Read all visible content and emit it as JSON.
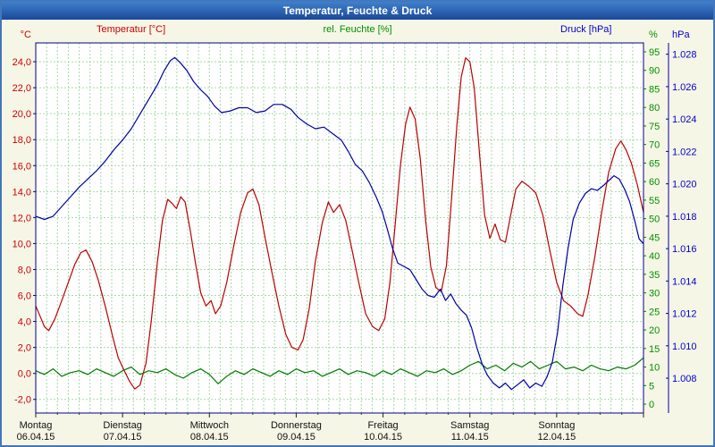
{
  "window": {
    "title": "Temperatur, Feuchte & Druck"
  },
  "legend": {
    "temperature": "Temperatur [°C]",
    "humidity": "rel. Feuchte [%]",
    "pressure": "Druck [hPa]"
  },
  "colors": {
    "temperature": "#bb0000",
    "humidity": "#007a00",
    "pressure": "#0000a8",
    "temp_text": "#cc0000",
    "hum_text": "#009000",
    "press_text": "#0000cc",
    "grid": "#a7d7a7",
    "plot_border": "#000080",
    "day_label": "#111111",
    "background": "#f6f6e6"
  },
  "axes": {
    "left": {
      "unit": "°C",
      "tick_values": [
        24,
        22,
        20,
        18,
        16,
        14,
        12,
        10,
        8,
        6,
        4,
        2,
        0,
        -2
      ],
      "tick_labels": [
        "24,0",
        "22,0",
        "20,0",
        "18,0",
        "16,0",
        "14,0",
        "12,0",
        "10,0",
        "8,0",
        "6,0",
        "4,0",
        "2,0",
        "0,0",
        "-2,0"
      ]
    },
    "right_humidity": {
      "unit": "%",
      "tick_values": [
        95,
        90,
        85,
        80,
        75,
        70,
        65,
        60,
        55,
        50,
        45,
        40,
        35,
        30,
        25,
        20,
        15,
        10,
        5,
        0
      ],
      "tick_labels": [
        "95",
        "90",
        "85",
        "80",
        "75",
        "70",
        "65",
        "60",
        "55",
        "50",
        "45",
        "40",
        "35",
        "30",
        "25",
        "20",
        "15",
        "10",
        "5",
        "0"
      ]
    },
    "right_pressure": {
      "unit": "hPa",
      "tick_values": [
        1.028,
        1.026,
        1.024,
        1.022,
        1.02,
        1.018,
        1.016,
        1.014,
        1.012,
        1.01,
        1.008
      ],
      "tick_labels": [
        "1.028",
        "1.026",
        "1.024",
        "1.022",
        "1.020",
        "1.018",
        "1.016",
        "1.014",
        "1.012",
        "1.010",
        "1.008"
      ]
    },
    "x_days": [
      {
        "weekday": "Montag",
        "date": "06.04.15"
      },
      {
        "weekday": "Dienstag",
        "date": "07.04.15"
      },
      {
        "weekday": "Mittwoch",
        "date": "08.04.15"
      },
      {
        "weekday": "Donnerstag",
        "date": "09.04.15"
      },
      {
        "weekday": "Freitag",
        "date": "10.04.15"
      },
      {
        "weekday": "Samstag",
        "date": "11.04.15"
      },
      {
        "weekday": "Sonntag",
        "date": "12.04.15"
      }
    ]
  },
  "chart_data": {
    "type": "line",
    "title": "Temperatur, Feuchte & Druck",
    "x_unit": "days",
    "x_range": [
      0,
      7
    ],
    "grid": {
      "x_step_days": 0.125,
      "y_step_temp": 2
    },
    "axis_ranges": {
      "temp": [
        -3.05,
        25.45
      ],
      "hum": [
        -2.4,
        97.4
      ],
      "press": [
        1.00585,
        1.0287
      ]
    },
    "series": [
      {
        "name": "Temperatur",
        "unit": "°C",
        "axis": "temp",
        "color_key": "temperature",
        "points": [
          [
            0.0,
            5.2
          ],
          [
            0.05,
            4.4
          ],
          [
            0.1,
            3.6
          ],
          [
            0.15,
            3.3
          ],
          [
            0.22,
            4.2
          ],
          [
            0.3,
            5.6
          ],
          [
            0.38,
            7.1
          ],
          [
            0.45,
            8.4
          ],
          [
            0.52,
            9.3
          ],
          [
            0.58,
            9.5
          ],
          [
            0.65,
            8.6
          ],
          [
            0.72,
            7.2
          ],
          [
            0.8,
            5.2
          ],
          [
            0.88,
            3.0
          ],
          [
            0.95,
            1.2
          ],
          [
            1.02,
            0.2
          ],
          [
            1.08,
            -0.6
          ],
          [
            1.14,
            -1.2
          ],
          [
            1.2,
            -0.9
          ],
          [
            1.27,
            0.8
          ],
          [
            1.33,
            4.0
          ],
          [
            1.4,
            8.5
          ],
          [
            1.46,
            11.8
          ],
          [
            1.52,
            13.4
          ],
          [
            1.57,
            13.1
          ],
          [
            1.62,
            12.7
          ],
          [
            1.67,
            13.6
          ],
          [
            1.72,
            13.2
          ],
          [
            1.78,
            11.0
          ],
          [
            1.84,
            8.5
          ],
          [
            1.9,
            6.2
          ],
          [
            1.96,
            5.2
          ],
          [
            2.02,
            5.6
          ],
          [
            2.07,
            4.6
          ],
          [
            2.13,
            5.2
          ],
          [
            2.2,
            7.0
          ],
          [
            2.28,
            9.8
          ],
          [
            2.36,
            12.4
          ],
          [
            2.44,
            13.9
          ],
          [
            2.5,
            14.2
          ],
          [
            2.57,
            13.0
          ],
          [
            2.64,
            10.5
          ],
          [
            2.72,
            7.8
          ],
          [
            2.8,
            5.2
          ],
          [
            2.88,
            3.0
          ],
          [
            2.95,
            2.0
          ],
          [
            3.02,
            1.8
          ],
          [
            3.08,
            2.6
          ],
          [
            3.15,
            5.0
          ],
          [
            3.22,
            8.6
          ],
          [
            3.3,
            11.6
          ],
          [
            3.37,
            13.2
          ],
          [
            3.43,
            12.4
          ],
          [
            3.5,
            13.0
          ],
          [
            3.57,
            11.8
          ],
          [
            3.64,
            9.6
          ],
          [
            3.72,
            7.0
          ],
          [
            3.8,
            4.6
          ],
          [
            3.88,
            3.6
          ],
          [
            3.95,
            3.3
          ],
          [
            4.02,
            4.2
          ],
          [
            4.08,
            7.0
          ],
          [
            4.14,
            11.5
          ],
          [
            4.2,
            16.0
          ],
          [
            4.26,
            19.2
          ],
          [
            4.31,
            20.5
          ],
          [
            4.37,
            19.6
          ],
          [
            4.43,
            16.5
          ],
          [
            4.49,
            11.8
          ],
          [
            4.55,
            8.2
          ],
          [
            4.61,
            6.6
          ],
          [
            4.67,
            6.3
          ],
          [
            4.73,
            8.3
          ],
          [
            4.79,
            13.5
          ],
          [
            4.85,
            19.0
          ],
          [
            4.9,
            22.8
          ],
          [
            4.95,
            24.3
          ],
          [
            5.0,
            24.0
          ],
          [
            5.05,
            22.0
          ],
          [
            5.11,
            17.0
          ],
          [
            5.17,
            12.2
          ],
          [
            5.23,
            10.4
          ],
          [
            5.29,
            11.5
          ],
          [
            5.35,
            10.3
          ],
          [
            5.41,
            10.1
          ],
          [
            5.47,
            12.2
          ],
          [
            5.53,
            14.2
          ],
          [
            5.6,
            14.8
          ],
          [
            5.68,
            14.4
          ],
          [
            5.76,
            13.9
          ],
          [
            5.84,
            12.2
          ],
          [
            5.92,
            9.5
          ],
          [
            6.0,
            7.0
          ],
          [
            6.08,
            5.6
          ],
          [
            6.16,
            5.2
          ],
          [
            6.24,
            4.6
          ],
          [
            6.3,
            4.4
          ],
          [
            6.36,
            6.0
          ],
          [
            6.44,
            9.0
          ],
          [
            6.52,
            12.5
          ],
          [
            6.6,
            15.5
          ],
          [
            6.68,
            17.3
          ],
          [
            6.74,
            17.9
          ],
          [
            6.8,
            17.2
          ],
          [
            6.86,
            16.2
          ],
          [
            6.93,
            14.5
          ],
          [
            7.0,
            12.4
          ]
        ]
      },
      {
        "name": "rel. Feuchte",
        "unit": "%",
        "axis": "hum",
        "color_key": "humidity",
        "points": [
          [
            0.0,
            9
          ],
          [
            0.1,
            8
          ],
          [
            0.2,
            9.5
          ],
          [
            0.3,
            7.5
          ],
          [
            0.4,
            8.5
          ],
          [
            0.5,
            9
          ],
          [
            0.6,
            8
          ],
          [
            0.7,
            9.5
          ],
          [
            0.8,
            8.5
          ],
          [
            0.9,
            7.5
          ],
          [
            1.0,
            9
          ],
          [
            1.1,
            10
          ],
          [
            1.2,
            8
          ],
          [
            1.3,
            9
          ],
          [
            1.4,
            8.5
          ],
          [
            1.5,
            9.5
          ],
          [
            1.6,
            8
          ],
          [
            1.7,
            7
          ],
          [
            1.8,
            8.5
          ],
          [
            1.9,
            9.5
          ],
          [
            2.0,
            8
          ],
          [
            2.1,
            5.5
          ],
          [
            2.2,
            7.5
          ],
          [
            2.3,
            9
          ],
          [
            2.4,
            8
          ],
          [
            2.5,
            9.5
          ],
          [
            2.6,
            8.5
          ],
          [
            2.7,
            7.5
          ],
          [
            2.8,
            9
          ],
          [
            2.9,
            8
          ],
          [
            3.0,
            9.5
          ],
          [
            3.1,
            8.5
          ],
          [
            3.2,
            9
          ],
          [
            3.3,
            7.5
          ],
          [
            3.4,
            8.5
          ],
          [
            3.5,
            9.5
          ],
          [
            3.6,
            8
          ],
          [
            3.7,
            9
          ],
          [
            3.8,
            8.5
          ],
          [
            3.9,
            7.5
          ],
          [
            4.0,
            9
          ],
          [
            4.1,
            8
          ],
          [
            4.2,
            9.5
          ],
          [
            4.3,
            8.5
          ],
          [
            4.4,
            7.5
          ],
          [
            4.5,
            9
          ],
          [
            4.6,
            8.5
          ],
          [
            4.7,
            9.5
          ],
          [
            4.8,
            8
          ],
          [
            4.9,
            9
          ],
          [
            5.0,
            10.5
          ],
          [
            5.1,
            11.5
          ],
          [
            5.2,
            9.5
          ],
          [
            5.3,
            10.5
          ],
          [
            5.4,
            9
          ],
          [
            5.5,
            11
          ],
          [
            5.6,
            10
          ],
          [
            5.7,
            11.5
          ],
          [
            5.8,
            9.5
          ],
          [
            5.9,
            10.5
          ],
          [
            6.0,
            11.5
          ],
          [
            6.1,
            9.5
          ],
          [
            6.2,
            10
          ],
          [
            6.3,
            9
          ],
          [
            6.4,
            10.5
          ],
          [
            6.5,
            9.5
          ],
          [
            6.6,
            9
          ],
          [
            6.7,
            10
          ],
          [
            6.8,
            9.5
          ],
          [
            6.9,
            10.5
          ],
          [
            7.0,
            12.5
          ]
        ]
      },
      {
        "name": "Druck",
        "unit": "hPa",
        "axis": "press",
        "color_key": "pressure",
        "points": [
          [
            0.0,
            1.018
          ],
          [
            0.1,
            1.0178
          ],
          [
            0.2,
            1.018
          ],
          [
            0.3,
            1.0186
          ],
          [
            0.4,
            1.0192
          ],
          [
            0.5,
            1.0198
          ],
          [
            0.6,
            1.0203
          ],
          [
            0.7,
            1.0208
          ],
          [
            0.8,
            1.0214
          ],
          [
            0.9,
            1.0221
          ],
          [
            1.0,
            1.0227
          ],
          [
            1.1,
            1.0234
          ],
          [
            1.2,
            1.0243
          ],
          [
            1.3,
            1.0252
          ],
          [
            1.4,
            1.0261
          ],
          [
            1.48,
            1.027
          ],
          [
            1.55,
            1.0276
          ],
          [
            1.6,
            1.0278
          ],
          [
            1.66,
            1.0275
          ],
          [
            1.74,
            1.027
          ],
          [
            1.82,
            1.0263
          ],
          [
            1.9,
            1.0258
          ],
          [
            1.98,
            1.0254
          ],
          [
            2.06,
            1.0248
          ],
          [
            2.14,
            1.0244
          ],
          [
            2.24,
            1.0245
          ],
          [
            2.34,
            1.0247
          ],
          [
            2.44,
            1.0247
          ],
          [
            2.54,
            1.0244
          ],
          [
            2.64,
            1.0245
          ],
          [
            2.74,
            1.0249
          ],
          [
            2.84,
            1.0249
          ],
          [
            2.94,
            1.0246
          ],
          [
            3.02,
            1.0241
          ],
          [
            3.12,
            1.0237
          ],
          [
            3.22,
            1.0234
          ],
          [
            3.32,
            1.0235
          ],
          [
            3.42,
            1.0231
          ],
          [
            3.52,
            1.0227
          ],
          [
            3.6,
            1.022
          ],
          [
            3.68,
            1.0212
          ],
          [
            3.76,
            1.0208
          ],
          [
            3.84,
            1.0201
          ],
          [
            3.92,
            1.0192
          ],
          [
            3.99,
            1.0183
          ],
          [
            4.05,
            1.0172
          ],
          [
            4.11,
            1.016
          ],
          [
            4.17,
            1.0151
          ],
          [
            4.24,
            1.0149
          ],
          [
            4.31,
            1.0147
          ],
          [
            4.38,
            1.0141
          ],
          [
            4.45,
            1.0135
          ],
          [
            4.52,
            1.0131
          ],
          [
            4.59,
            1.013
          ],
          [
            4.66,
            1.0135
          ],
          [
            4.72,
            1.0128
          ],
          [
            4.78,
            1.0132
          ],
          [
            4.84,
            1.0126
          ],
          [
            4.9,
            1.0122
          ],
          [
            4.96,
            1.0119
          ],
          [
            5.02,
            1.0111
          ],
          [
            5.08,
            1.0099
          ],
          [
            5.14,
            1.0089
          ],
          [
            5.2,
            1.0082
          ],
          [
            5.27,
            1.0077
          ],
          [
            5.34,
            1.0074
          ],
          [
            5.41,
            1.0077
          ],
          [
            5.48,
            1.0073
          ],
          [
            5.55,
            1.0076
          ],
          [
            5.62,
            1.0079
          ],
          [
            5.69,
            1.0074
          ],
          [
            5.76,
            1.0077
          ],
          [
            5.83,
            1.0075
          ],
          [
            5.89,
            1.0081
          ],
          [
            5.95,
            1.009
          ],
          [
            6.01,
            1.0108
          ],
          [
            6.07,
            1.0137
          ],
          [
            6.13,
            1.016
          ],
          [
            6.19,
            1.0178
          ],
          [
            6.26,
            1.0188
          ],
          [
            6.33,
            1.0194
          ],
          [
            6.4,
            1.0197
          ],
          [
            6.47,
            1.0196
          ],
          [
            6.54,
            1.0199
          ],
          [
            6.6,
            1.0202
          ],
          [
            6.66,
            1.0205
          ],
          [
            6.72,
            1.0203
          ],
          [
            6.78,
            1.0197
          ],
          [
            6.84,
            1.0189
          ],
          [
            6.9,
            1.0177
          ],
          [
            6.95,
            1.0166
          ],
          [
            7.0,
            1.0163
          ]
        ]
      }
    ]
  }
}
